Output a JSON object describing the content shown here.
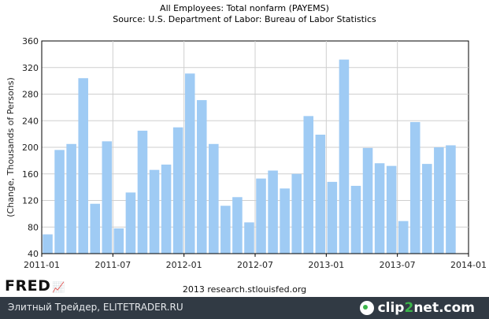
{
  "chart_data": {
    "type": "bar",
    "title": "All Employees: Total nonfarm (PAYEMS)",
    "subtitle": "Source: U.S. Department of Labor: Bureau of Labor Statistics",
    "ylabel": "(Change, Thousands of Persons)",
    "xlabel": "",
    "ylim": [
      40,
      360
    ],
    "yticks": [
      40,
      80,
      120,
      160,
      200,
      240,
      280,
      320,
      360
    ],
    "xlim": [
      "2011-01",
      "2014-01"
    ],
    "xticks": [
      "2011-01",
      "2011-07",
      "2012-01",
      "2012-07",
      "2013-01",
      "2013-07",
      "2014-01"
    ],
    "grid": true,
    "bar_color": "#9fcbf4",
    "categories": [
      "2011-01",
      "2011-02",
      "2011-03",
      "2011-04",
      "2011-05",
      "2011-06",
      "2011-07",
      "2011-08",
      "2011-09",
      "2011-10",
      "2011-11",
      "2011-12",
      "2012-01",
      "2012-02",
      "2012-03",
      "2012-04",
      "2012-05",
      "2012-06",
      "2012-07",
      "2012-08",
      "2012-09",
      "2012-10",
      "2012-11",
      "2012-12",
      "2013-01",
      "2013-02",
      "2013-03",
      "2013-04",
      "2013-05",
      "2013-06",
      "2013-07",
      "2013-08",
      "2013-09",
      "2013-10",
      "2013-11"
    ],
    "values": [
      69,
      196,
      205,
      304,
      115,
      209,
      78,
      132,
      225,
      166,
      174,
      230,
      311,
      271,
      205,
      112,
      125,
      87,
      153,
      165,
      138,
      160,
      247,
      219,
      148,
      332,
      142,
      199,
      176,
      172,
      89,
      238,
      175,
      200,
      203
    ]
  },
  "branding": {
    "logo": "FRED",
    "logo_icon": "sparkline-icon",
    "copyright": "2013 research.stlouisfed.org"
  },
  "footer": {
    "left_text": "Элитный Трейдер, ELITETRADER.RU",
    "brand_left": "clip",
    "brand_mid": "2",
    "brand_right": "net.com",
    "background": "#313a44",
    "accent": "#3bb54a"
  }
}
